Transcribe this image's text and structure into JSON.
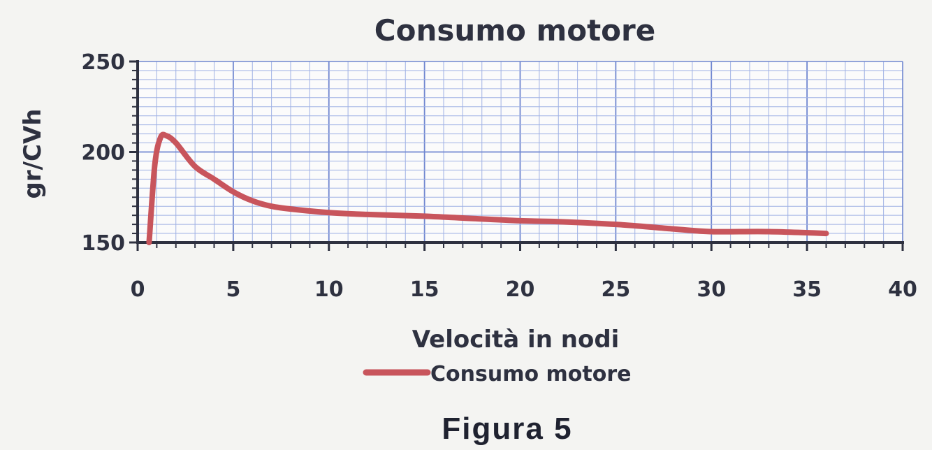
{
  "chart_data": {
    "type": "line",
    "title": "Consumo motore",
    "xlabel": "Velocità in nodi",
    "ylabel": "gr/CVh",
    "xlim": [
      0,
      40
    ],
    "ylim": [
      150,
      250
    ],
    "xticks": [
      "0",
      "5",
      "10",
      "15",
      "20",
      "25",
      "30",
      "35",
      "40"
    ],
    "yticks": [
      "150",
      "200",
      "250"
    ],
    "grid": true,
    "legend_position": "bottom",
    "series": [
      {
        "name": "Consumo motore",
        "color": "#c8555c",
        "x": [
          0.6,
          0.9,
          1.2,
          1.5,
          2.0,
          3.0,
          4.0,
          5.0,
          6.0,
          7.0,
          8.0,
          10.0,
          12.0,
          15.0,
          17.0,
          20.0,
          22.0,
          25.0,
          28.0,
          30.0,
          33.0,
          36.0
        ],
        "y": [
          150,
          193,
          208,
          209,
          205,
          192,
          185,
          178,
          173,
          170,
          168.5,
          166.5,
          165.5,
          164.5,
          163.5,
          162,
          161.5,
          160,
          157.5,
          156,
          156,
          155
        ]
      }
    ]
  },
  "caption": "Figura  5"
}
